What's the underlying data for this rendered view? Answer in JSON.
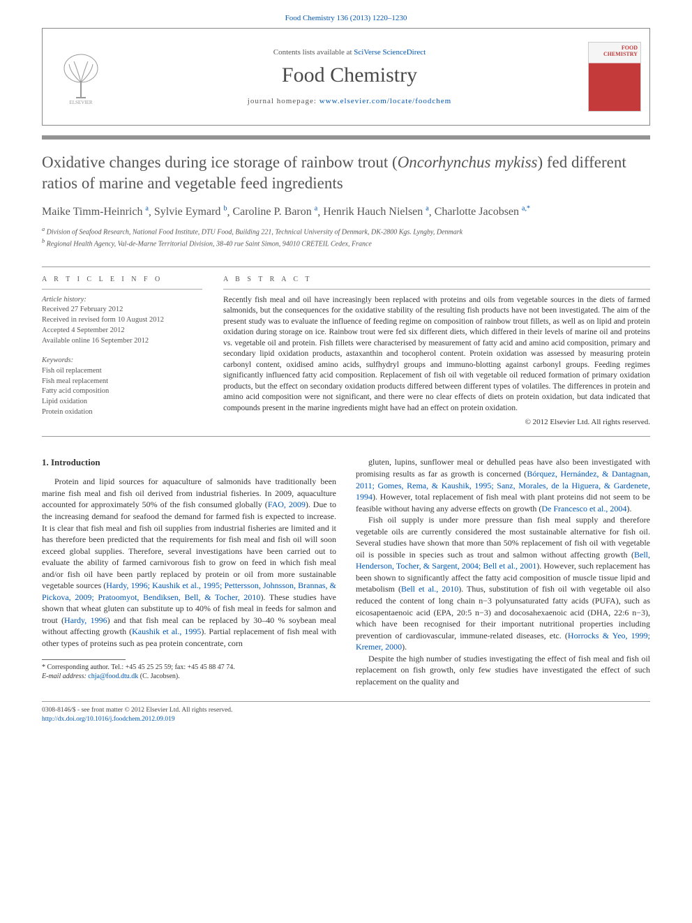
{
  "header": {
    "citation": "Food Chemistry 136 (2013) 1220–1230"
  },
  "banner": {
    "availability_prefix": "Contents lists available at ",
    "availability_link": "SciVerse ScienceDirect",
    "journal_name": "Food Chemistry",
    "homepage_prefix": "journal homepage: ",
    "homepage_link": "www.elsevier.com/locate/foodchem",
    "cover_label_1": "FOOD",
    "cover_label_2": "CHEMISTRY"
  },
  "article": {
    "title_pre": "Oxidative changes during ice storage of rainbow trout (",
    "title_italic": "Oncorhynchus mykiss",
    "title_post": ") fed different ratios of marine and vegetable feed ingredients",
    "authors_html": [
      {
        "name": "Maike Timm-Heinrich",
        "sup": "a"
      },
      {
        "name": "Sylvie Eymard",
        "sup": "b"
      },
      {
        "name": "Caroline P. Baron",
        "sup": "a"
      },
      {
        "name": "Henrik Hauch Nielsen",
        "sup": "a"
      },
      {
        "name": "Charlotte Jacobsen",
        "sup": "a,",
        "star": "*"
      }
    ],
    "affiliations": [
      {
        "sup": "a",
        "text": "Division of Seafood Research, National Food Institute, DTU Food, Building 221, Technical University of Denmark, DK-2800 Kgs. Lyngby, Denmark"
      },
      {
        "sup": "b",
        "text": "Regional Health Agency, Val-de-Marne Territorial Division, 38-40 rue Saint Simon, 94010 CRETEIL Cedex, France"
      }
    ]
  },
  "info": {
    "label": "A R T I C L E   I N F O",
    "history_label": "Article history:",
    "history": [
      "Received 27 February 2012",
      "Received in revised form 10 August 2012",
      "Accepted 4 September 2012",
      "Available online 16 September 2012"
    ],
    "keywords_label": "Keywords:",
    "keywords": [
      "Fish oil replacement",
      "Fish meal replacement",
      "Fatty acid composition",
      "Lipid oxidation",
      "Protein oxidation"
    ]
  },
  "abstract": {
    "label": "A B S T R A C T",
    "text": "Recently fish meal and oil have increasingly been replaced with proteins and oils from vegetable sources in the diets of farmed salmonids, but the consequences for the oxidative stability of the resulting fish products have not been investigated. The aim of the present study was to evaluate the influence of feeding regime on composition of rainbow trout fillets, as well as on lipid and protein oxidation during storage on ice. Rainbow trout were fed six different diets, which differed in their levels of marine oil and proteins vs. vegetable oil and protein. Fish fillets were characterised by measurement of fatty acid and amino acid composition, primary and secondary lipid oxidation products, astaxanthin and tocopherol content. Protein oxidation was assessed by measuring protein carbonyl content, oxidised amino acids, sulfhydryl groups and immuno-blotting against carbonyl groups. Feeding regimes significantly influenced fatty acid composition. Replacement of fish oil with vegetable oil reduced formation of primary oxidation products, but the effect on secondary oxidation products differed between different types of volatiles. The differences in protein and amino acid composition were not significant, and there were no clear effects of diets on protein oxidation, but data indicated that compounds present in the marine ingredients might have had an effect on protein oxidation.",
    "copyright": "© 2012 Elsevier Ltd. All rights reserved."
  },
  "body": {
    "section_heading": "1. Introduction",
    "col1_p1_a": "Protein and lipid sources for aquaculture of salmonids have traditionally been marine fish meal and fish oil derived from industrial fisheries. In 2009, aquaculture accounted for approximately 50% of the fish consumed globally (",
    "col1_p1_link1": "FAO, 2009",
    "col1_p1_b": "). Due to the increasing demand for seafood the demand for farmed fish is expected to increase. It is clear that fish meal and fish oil supplies from industrial fisheries are limited and it has therefore been predicted that the requirements for fish meal and fish oil will soon exceed global supplies. Therefore, several investigations have been carried out to evaluate the ability of farmed carnivorous fish to grow on feed in which fish meal and/or fish oil have been partly replaced by protein or oil from more sustainable vegetable sources (",
    "col1_p1_link2": "Hardy, 1996; Kaushik et al., 1995; Pettersson, Johnsson, Brannas, & Pickova, 2009; Pratoomyot, Bendiksen, Bell, & Tocher, 2010",
    "col1_p1_c": "). These studies have shown that wheat gluten can substitute up to 40% of fish meal in feeds for salmon and trout (",
    "col1_p1_link3": "Hardy, 1996",
    "col1_p1_d": ") and that fish meal can be replaced by 30–40 % soybean meal without affecting growth (",
    "col1_p1_link4": "Kaushik et al., 1995",
    "col1_p1_e": "). Partial replacement of fish meal with other types of proteins such as pea protein concentrate, corn",
    "col2_p1_a": "gluten, lupins, sunflower meal or dehulled peas have also been investigated with promising results as far as growth is concerned (",
    "col2_p1_link1": "Bórquez, Hernández, & Dantagnan, 2011; Gomes, Rema, & Kaushik, 1995; Sanz, Morales, de la Higuera, & Gardenete, 1994",
    "col2_p1_b": "). However, total replacement of fish meal with plant proteins did not seem to be feasible without having any adverse effects on growth (",
    "col2_p1_link2": "De Francesco et al., 2004",
    "col2_p1_c": ").",
    "col2_p2_a": "Fish oil supply is under more pressure than fish meal supply and therefore vegetable oils are currently considered the most sustainable alternative for fish oil. Several studies have shown that more than 50% replacement of fish oil with vegetable oil is possible in species such as trout and salmon without affecting growth (",
    "col2_p2_link1": "Bell, Henderson, Tocher, & Sargent, 2004; Bell et al., 2001",
    "col2_p2_b": "). However, such replacement has been shown to significantly affect the fatty acid composition of muscle tissue lipid and metabolism (",
    "col2_p2_link2": "Bell et al., 2010",
    "col2_p2_c": "). Thus, substitution of fish oil with vegetable oil also reduced the content of long chain n−3 polyunsaturated fatty acids (PUFA), such as eicosapentaenoic acid (EPA, 20:5 n−3) and docosahexaenoic acid (DHA, 22:6 n−3), which have been recognised for their important nutritional properties including prevention of cardiovascular, immune-related diseases, etc. (",
    "col2_p2_link3": "Horrocks & Yeo, 1999; Kremer, 2000",
    "col2_p2_d": ").",
    "col2_p3": "Despite the high number of studies investigating the effect of fish meal and fish oil replacement on fish growth, only few studies have investigated the effect of such replacement on the quality and"
  },
  "footnote": {
    "corr": "* Corresponding author. Tel.: +45 45 25 25 59; fax: +45 45 88 47 74.",
    "email_label": "E-mail address:",
    "email": "chja@food.dtu.dk",
    "email_who": " (C. Jacobsen)."
  },
  "footer": {
    "line1": "0308-8146/$ - see front matter © 2012 Elsevier Ltd. All rights reserved.",
    "doi": "http://dx.doi.org/10.1016/j.foodchem.2012.09.019"
  },
  "colors": {
    "link": "#0056b3",
    "rule": "#939393",
    "text": "#333333",
    "heading": "#555555",
    "cover_red": "#c43a3a"
  }
}
